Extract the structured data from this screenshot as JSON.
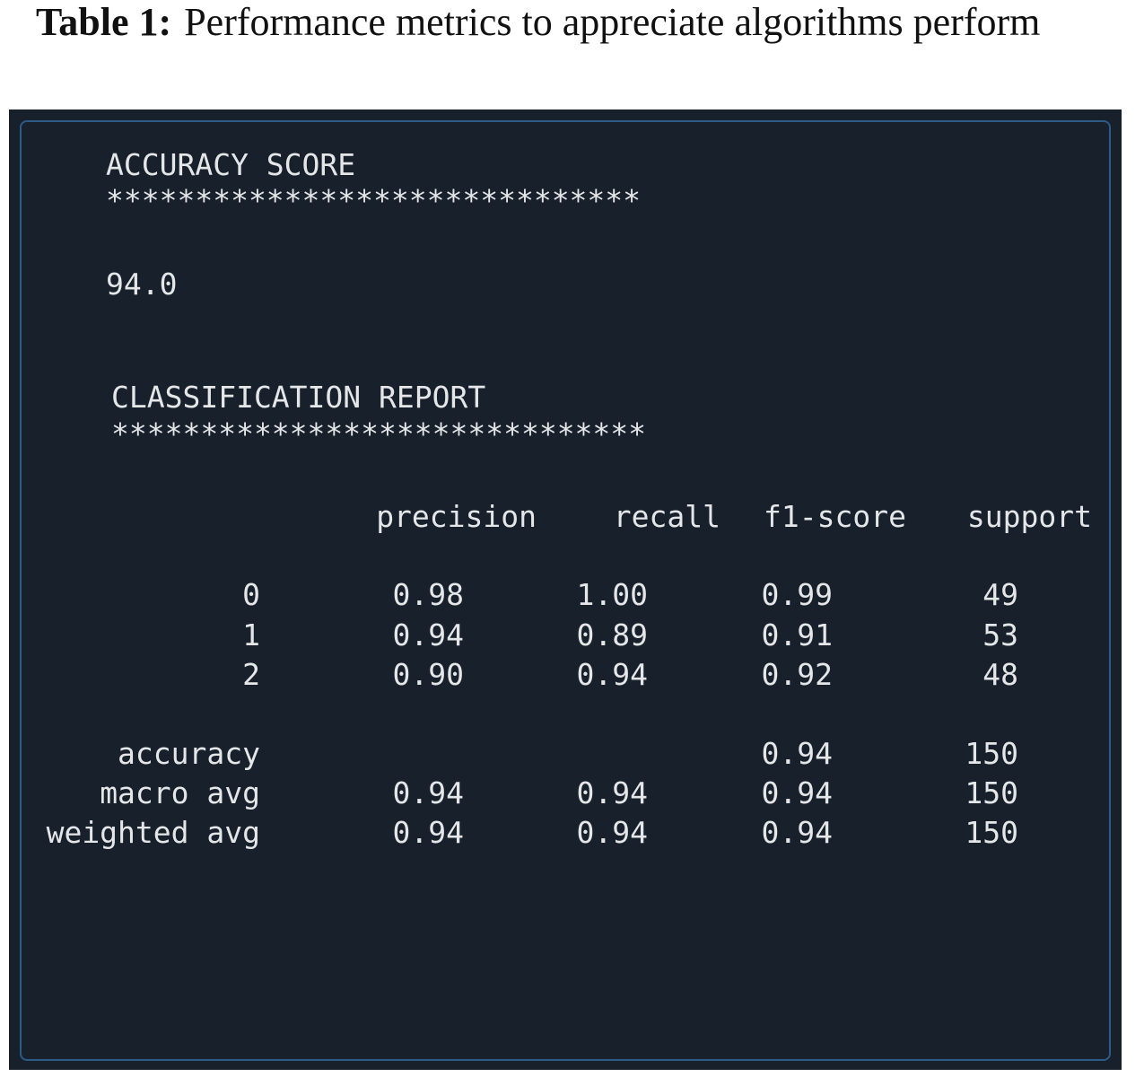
{
  "caption": {
    "label": "Table 1:",
    "text": "Performance metrics to appreciate algorithms perform"
  },
  "console": {
    "accuracy_heading": "ACCURACY SCORE",
    "accuracy_rule": "******************************",
    "accuracy_value": "94.0",
    "report_heading": "CLASSIFICATION REPORT",
    "report_rule": "******************************",
    "table": {
      "header": [
        "precision",
        "recall",
        "f1-score",
        "support"
      ],
      "rows": [
        {
          "label": "0",
          "cells": [
            "0.98",
            "1.00",
            "0.99",
            "49"
          ]
        },
        {
          "label": "1",
          "cells": [
            "0.94",
            "0.89",
            "0.91",
            "53"
          ]
        },
        {
          "label": "2",
          "cells": [
            "0.90",
            "0.94",
            "0.92",
            "48"
          ]
        },
        {
          "label": "accuracy",
          "cells": [
            null,
            null,
            "0.94",
            "150"
          ]
        },
        {
          "label": "macro avg",
          "cells": [
            "0.94",
            "0.94",
            "0.94",
            "150"
          ]
        },
        {
          "label": "weighted avg",
          "cells": [
            "0.94",
            "0.94",
            "0.94",
            "150"
          ]
        }
      ]
    }
  }
}
